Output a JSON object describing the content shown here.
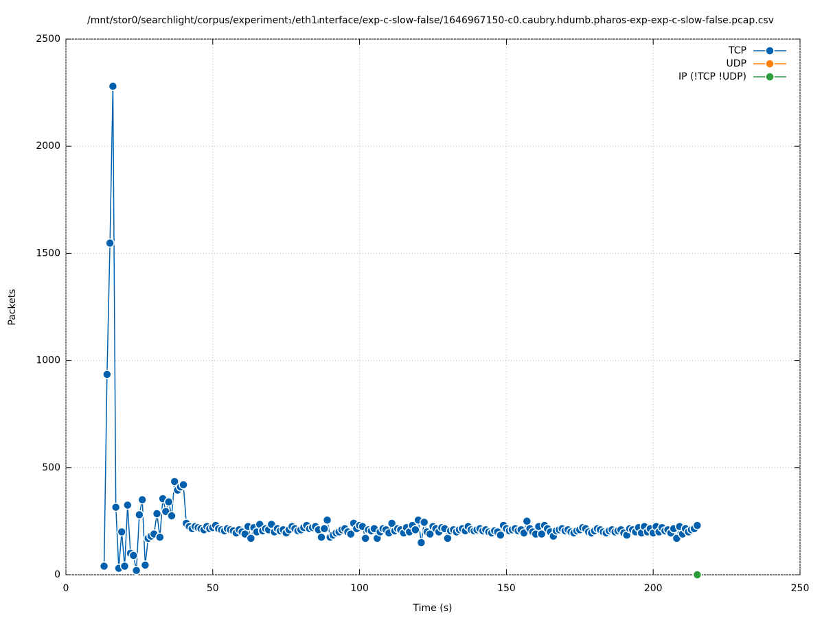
{
  "chart_data": {
    "type": "line",
    "title": "/mnt/stor0/searchlight/corpus/experiment₁/eth1ᵢnterface/exp-c-slow-false/1646967150-c0.caubry.hdumb.pharos-exp-exp-c-slow-false.pcap.csv",
    "x_label": "Time (s)",
    "y_label": "Packets",
    "xlim": [
      0,
      250
    ],
    "xticks": [
      0,
      50,
      100,
      150,
      200,
      250
    ],
    "ylim": [
      0,
      2500
    ],
    "yticks": [
      0,
      500,
      1000,
      1500,
      2000,
      2500
    ],
    "grid": true,
    "legend": "top-right",
    "series": [
      {
        "name": "TCP",
        "color": "#0060ad",
        "x": [
          13,
          14,
          15,
          16,
          17,
          18,
          19,
          20,
          21,
          22,
          23,
          24,
          25,
          26,
          27,
          28,
          29,
          30,
          31,
          32,
          33,
          34,
          35,
          36,
          37,
          38,
          39,
          40,
          41,
          42,
          43,
          44,
          45,
          46,
          47,
          48,
          49,
          50,
          51,
          52,
          53,
          54,
          55,
          56,
          57,
          58,
          59,
          60,
          61,
          62,
          63,
          64,
          65,
          66,
          67,
          68,
          69,
          70,
          71,
          72,
          73,
          74,
          75,
          76,
          77,
          78,
          79,
          80,
          81,
          82,
          83,
          84,
          85,
          86,
          87,
          88,
          89,
          90,
          91,
          92,
          93,
          94,
          95,
          96,
          97,
          98,
          99,
          100,
          101,
          102,
          103,
          104,
          105,
          106,
          107,
          108,
          109,
          110,
          111,
          112,
          113,
          114,
          115,
          116,
          117,
          118,
          119,
          120,
          121,
          122,
          123,
          124,
          125,
          126,
          127,
          128,
          129,
          130,
          131,
          132,
          133,
          134,
          135,
          136,
          137,
          138,
          139,
          140,
          141,
          142,
          143,
          144,
          145,
          146,
          147,
          148,
          149,
          150,
          151,
          152,
          153,
          154,
          155,
          156,
          157,
          158,
          159,
          160,
          161,
          162,
          163,
          164,
          165,
          166,
          167,
          168,
          169,
          170,
          171,
          172,
          173,
          174,
          175,
          176,
          177,
          178,
          179,
          180,
          181,
          182,
          183,
          184,
          185,
          186,
          187,
          188,
          189,
          190,
          191,
          192,
          193,
          194,
          195,
          196,
          197,
          198,
          199,
          200,
          201,
          202,
          203,
          204,
          205,
          206,
          207,
          208,
          209,
          210,
          211,
          212,
          213,
          214,
          215
        ],
        "values": [
          40,
          935,
          1548,
          2280,
          315,
          30,
          200,
          40,
          325,
          100,
          90,
          20,
          280,
          350,
          45,
          170,
          180,
          190,
          285,
          175,
          355,
          295,
          340,
          275,
          435,
          395,
          410,
          420,
          240,
          225,
          215,
          225,
          220,
          215,
          210,
          225,
          215,
          220,
          230,
          215,
          210,
          205,
          215,
          210,
          205,
          195,
          210,
          200,
          190,
          225,
          170,
          220,
          200,
          235,
          205,
          215,
          210,
          235,
          200,
          215,
          205,
          210,
          195,
          210,
          225,
          215,
          205,
          210,
          220,
          230,
          215,
          220,
          225,
          210,
          175,
          215,
          255,
          175,
          185,
          195,
          200,
          210,
          215,
          200,
          190,
          240,
          215,
          230,
          225,
          170,
          210,
          205,
          215,
          170,
          200,
          215,
          210,
          195,
          240,
          205,
          215,
          210,
          195,
          220,
          200,
          230,
          210,
          255,
          150,
          245,
          200,
          190,
          225,
          215,
          200,
          220,
          215,
          170,
          205,
          210,
          200,
          210,
          215,
          205,
          225,
          210,
          205,
          210,
          215,
          205,
          210,
          200,
          195,
          205,
          200,
          185,
          230,
          215,
          205,
          210,
          215,
          205,
          210,
          195,
          250,
          215,
          200,
          190,
          225,
          190,
          230,
          215,
          200,
          180,
          205,
          210,
          215,
          205,
          210,
          200,
          195,
          205,
          210,
          220,
          215,
          200,
          195,
          205,
          215,
          210,
          200,
          195,
          205,
          210,
          200,
          205,
          210,
          195,
          185,
          215,
          210,
          200,
          220,
          195,
          225,
          200,
          215,
          195,
          225,
          200,
          220,
          205,
          210,
          195,
          215,
          170,
          225,
          190,
          215,
          200,
          210,
          215,
          230
        ]
      },
      {
        "name": "UDP",
        "color": "#ff7f0e",
        "x": [],
        "values": []
      },
      {
        "name": "IP (!TCP  !UDP)",
        "color": "#2a9a3a",
        "x": [
          215
        ],
        "values": [
          0
        ]
      }
    ]
  }
}
